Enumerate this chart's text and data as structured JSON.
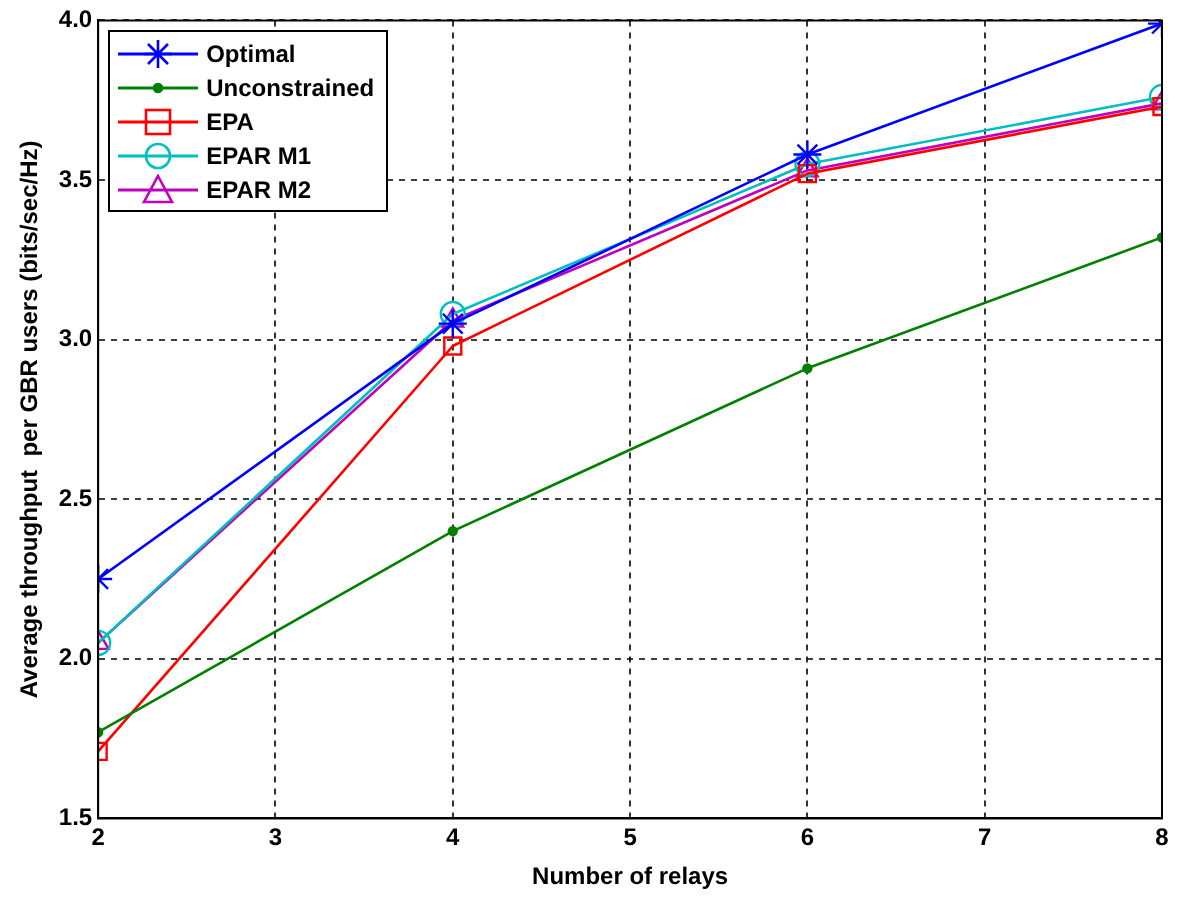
{
  "chart_data": {
    "type": "line",
    "xlabel": "Number of relays",
    "ylabel": "Average throughput  per GBR users (bits/sec/Hz)",
    "x": [
      2,
      4,
      6,
      8
    ],
    "xlim": [
      2,
      8
    ],
    "xticks": [
      2,
      3,
      4,
      5,
      6,
      7,
      8
    ],
    "ylim": [
      1.5,
      4
    ],
    "yticks": [
      1.5,
      {
        "value": 2,
        "label": "2.0"
      },
      2.5,
      {
        "value": 3,
        "label": "3.0"
      },
      3.5,
      {
        "value": 4,
        "label": "4.0"
      }
    ],
    "grid": true,
    "legend": "top left",
    "line_style": "solid",
    "series": [
      {
        "name": "Optimal",
        "color": "#0000ff",
        "marker": "cross",
        "values": [
          2.25,
          3.05,
          3.58,
          3.99
        ]
      },
      {
        "name": "Unconstrained",
        "color": "#008000",
        "marker": "circle",
        "values": [
          1.77,
          2.4,
          2.91,
          3.32
        ]
      },
      {
        "name": "EPA",
        "color": "#ff0000",
        "marker": "square",
        "values": [
          1.71,
          2.98,
          3.52,
          3.73
        ]
      },
      {
        "name": "EPAR M1",
        "color": "#00bfbf",
        "marker": "circle",
        "values": [
          2.05,
          3.08,
          3.55,
          3.76
        ]
      },
      {
        "name": "EPAR M2",
        "color": "#bf00bf",
        "marker": "triangle",
        "values": [
          2.05,
          3.06,
          3.53,
          3.74
        ]
      }
    ]
  }
}
